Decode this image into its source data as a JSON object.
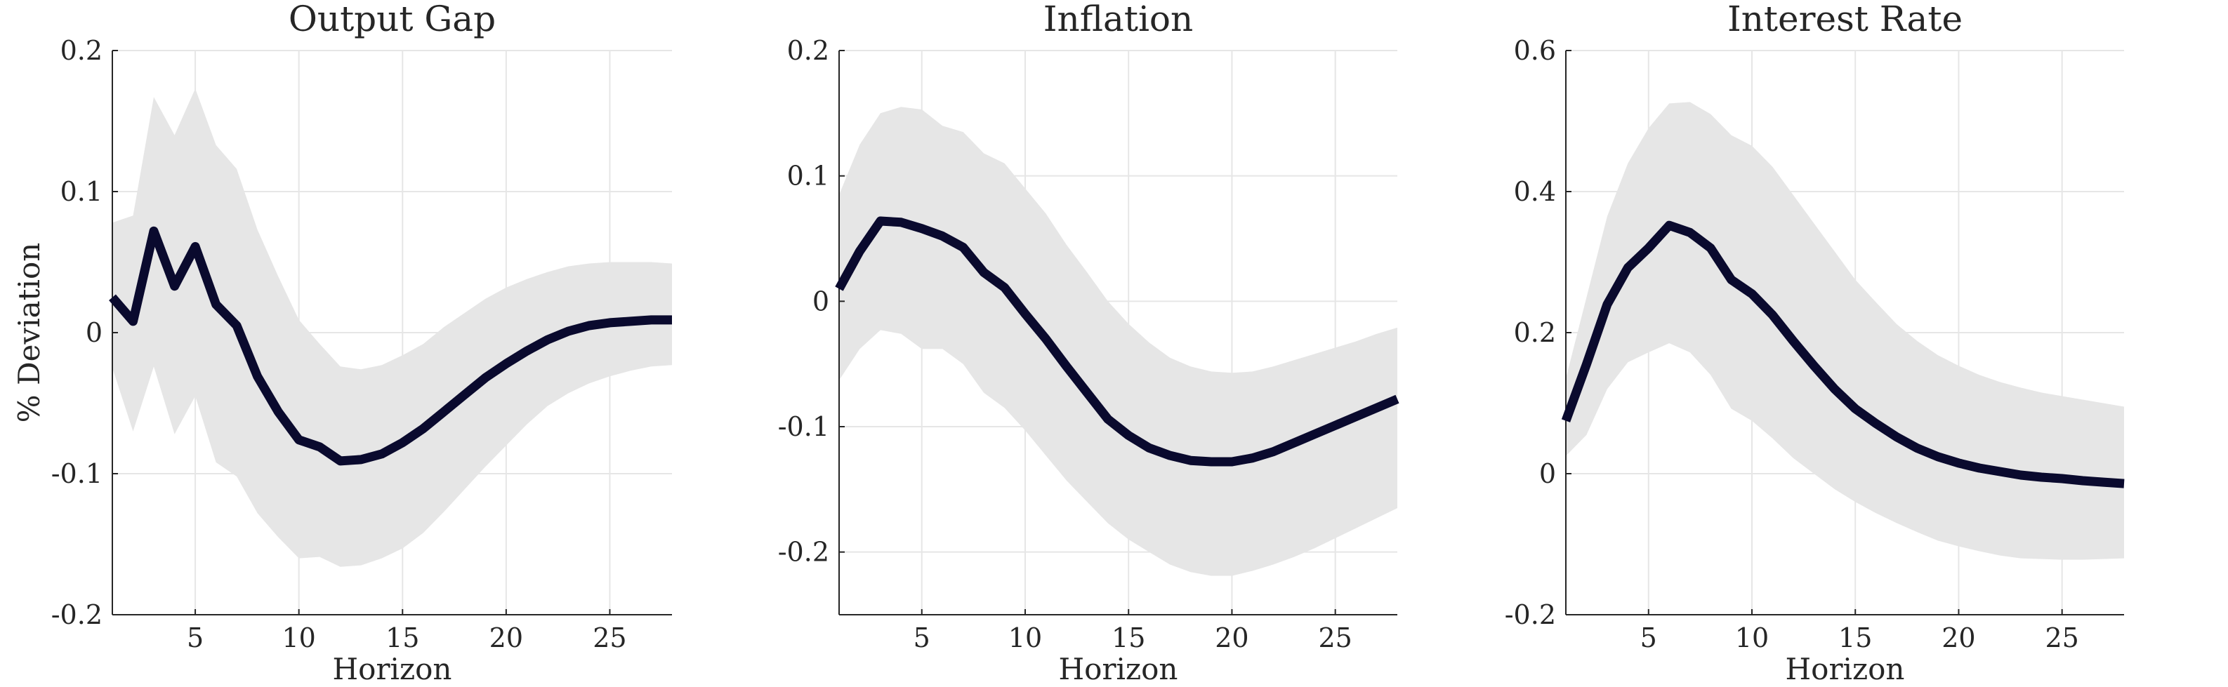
{
  "colors": {
    "line": "#0a0a2e",
    "band": "#e6e6e6",
    "grid": "#e6e6e6",
    "axis": "#262626"
  },
  "chart_data": [
    {
      "type": "line",
      "title": "Output Gap",
      "xlabel": "Horizon",
      "ylabel": "% Deviation",
      "xlim": [
        1,
        28
      ],
      "ylim": [
        -0.2,
        0.2
      ],
      "xticks": [
        5,
        10,
        15,
        20,
        25
      ],
      "yticks": [
        -0.2,
        -0.1,
        0,
        0.1,
        0.2
      ],
      "ytick_labels": [
        "-0.2",
        "-0.1",
        "0",
        "0.1",
        "0.2"
      ],
      "grid": true,
      "x": [
        1,
        2,
        3,
        4,
        5,
        6,
        7,
        8,
        9,
        10,
        11,
        12,
        13,
        14,
        15,
        16,
        17,
        18,
        19,
        20,
        21,
        22,
        23,
        24,
        25,
        26,
        27,
        28
      ],
      "series": [
        {
          "values": [
            0.025,
            0.008,
            0.072,
            0.033,
            0.061,
            0.02,
            0.005,
            -0.031,
            -0.056,
            -0.076,
            -0.081,
            -0.091,
            -0.09,
            -0.086,
            -0.078,
            -0.068,
            -0.056,
            -0.044,
            -0.032,
            -0.022,
            -0.013,
            -0.005,
            0.001,
            0.005,
            0.007,
            0.008,
            0.009,
            0.009
          ]
        }
      ],
      "band": {
        "upper": [
          0.078,
          0.083,
          0.167,
          0.14,
          0.173,
          0.133,
          0.116,
          0.073,
          0.04,
          0.009,
          -0.008,
          -0.024,
          -0.026,
          -0.023,
          -0.016,
          -0.008,
          0.004,
          0.014,
          0.024,
          0.032,
          0.038,
          0.043,
          0.047,
          0.049,
          0.05,
          0.05,
          0.05,
          0.049
        ],
        "lower": [
          -0.025,
          -0.07,
          -0.024,
          -0.072,
          -0.045,
          -0.092,
          -0.102,
          -0.128,
          -0.145,
          -0.16,
          -0.159,
          -0.166,
          -0.165,
          -0.16,
          -0.153,
          -0.142,
          -0.127,
          -0.111,
          -0.095,
          -0.08,
          -0.065,
          -0.052,
          -0.043,
          -0.036,
          -0.031,
          -0.027,
          -0.024,
          -0.023
        ]
      }
    },
    {
      "type": "line",
      "title": "Inflation",
      "xlabel": "Horizon",
      "ylabel": "",
      "xlim": [
        1,
        28
      ],
      "ylim": [
        -0.25,
        0.2
      ],
      "xticks": [
        5,
        10,
        15,
        20,
        25
      ],
      "yticks": [
        -0.2,
        -0.1,
        0,
        0.1,
        0.2
      ],
      "ytick_labels": [
        "-0.2",
        "-0.1",
        "0",
        "0.1",
        "0.2"
      ],
      "grid": true,
      "x": [
        1,
        2,
        3,
        4,
        5,
        6,
        7,
        8,
        9,
        10,
        11,
        12,
        13,
        14,
        15,
        16,
        17,
        18,
        19,
        20,
        21,
        22,
        23,
        24,
        25,
        26,
        27,
        28
      ],
      "series": [
        {
          "values": [
            0.01,
            0.04,
            0.064,
            0.063,
            0.058,
            0.052,
            0.043,
            0.023,
            0.011,
            -0.01,
            -0.03,
            -0.052,
            -0.073,
            -0.094,
            -0.107,
            -0.117,
            -0.123,
            -0.127,
            -0.128,
            -0.128,
            -0.125,
            -0.12,
            -0.113,
            -0.106,
            -0.099,
            -0.092,
            -0.085,
            -0.078
          ]
        }
      ],
      "band": {
        "upper": [
          0.085,
          0.125,
          0.15,
          0.155,
          0.153,
          0.14,
          0.135,
          0.118,
          0.11,
          0.09,
          0.07,
          0.045,
          0.023,
          0.0,
          -0.018,
          -0.033,
          -0.045,
          -0.052,
          -0.056,
          -0.057,
          -0.056,
          -0.052,
          -0.047,
          -0.042,
          -0.037,
          -0.032,
          -0.026,
          -0.021
        ],
        "lower": [
          -0.063,
          -0.038,
          -0.023,
          -0.026,
          -0.038,
          -0.038,
          -0.05,
          -0.073,
          -0.085,
          -0.103,
          -0.123,
          -0.143,
          -0.16,
          -0.177,
          -0.19,
          -0.2,
          -0.21,
          -0.216,
          -0.219,
          -0.219,
          -0.215,
          -0.21,
          -0.204,
          -0.197,
          -0.189,
          -0.181,
          -0.173,
          -0.165
        ]
      }
    },
    {
      "type": "line",
      "title": "Interest Rate",
      "xlabel": "Horizon",
      "ylabel": "",
      "xlim": [
        1,
        28
      ],
      "ylim": [
        -0.2,
        0.6
      ],
      "xticks": [
        5,
        10,
        15,
        20,
        25
      ],
      "yticks": [
        -0.2,
        0,
        0.2,
        0.4,
        0.6
      ],
      "ytick_labels": [
        "-0.2",
        "0",
        "0.2",
        "0.4",
        "0.6"
      ],
      "grid": true,
      "x": [
        1,
        2,
        3,
        4,
        5,
        6,
        7,
        8,
        9,
        10,
        11,
        12,
        13,
        14,
        15,
        16,
        17,
        18,
        19,
        20,
        21,
        22,
        23,
        24,
        25,
        26,
        27,
        28
      ],
      "series": [
        {
          "values": [
            0.075,
            0.155,
            0.24,
            0.292,
            0.32,
            0.352,
            0.342,
            0.32,
            0.275,
            0.255,
            0.225,
            0.188,
            0.153,
            0.12,
            0.092,
            0.071,
            0.052,
            0.036,
            0.024,
            0.015,
            0.008,
            0.003,
            -0.002,
            -0.005,
            -0.007,
            -0.01,
            -0.012,
            -0.014
          ]
        }
      ],
      "band": {
        "upper": [
          0.135,
          0.25,
          0.365,
          0.44,
          0.49,
          0.525,
          0.527,
          0.51,
          0.48,
          0.465,
          0.435,
          0.395,
          0.355,
          0.315,
          0.275,
          0.243,
          0.212,
          0.188,
          0.168,
          0.153,
          0.14,
          0.13,
          0.122,
          0.115,
          0.11,
          0.105,
          0.1,
          0.095
        ],
        "lower": [
          0.025,
          0.055,
          0.12,
          0.158,
          0.172,
          0.185,
          0.172,
          0.14,
          0.092,
          0.075,
          0.05,
          0.022,
          0.0,
          -0.022,
          -0.04,
          -0.056,
          -0.07,
          -0.083,
          -0.095,
          -0.103,
          -0.11,
          -0.116,
          -0.12,
          -0.121,
          -0.122,
          -0.122,
          -0.121,
          -0.12
        ]
      }
    }
  ]
}
